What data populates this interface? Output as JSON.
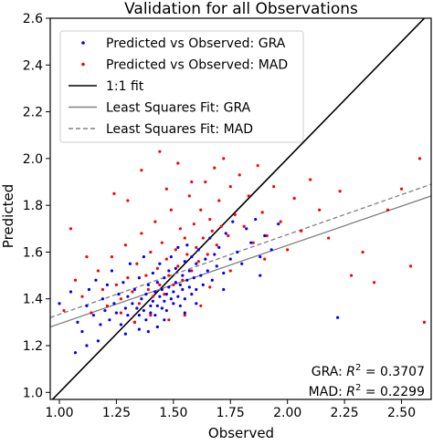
{
  "chart_data": {
    "type": "scatter",
    "title": "Validation for all Observations",
    "xlabel": "Observed",
    "ylabel": "Predicted",
    "xlim": [
      0.96,
      2.63
    ],
    "ylim": [
      0.97,
      2.6
    ],
    "x_ticks": [
      1.0,
      1.25,
      1.5,
      1.75,
      2.0,
      2.25,
      2.5
    ],
    "x_tick_labels": [
      "1.00",
      "1.25",
      "1.50",
      "1.75",
      "2.00",
      "2.25",
      "2.50"
    ],
    "y_ticks": [
      1.0,
      1.2,
      1.4,
      1.6,
      1.8,
      2.0,
      2.2,
      2.4,
      2.6
    ],
    "y_tick_labels": [
      "1.0",
      "1.2",
      "1.4",
      "1.6",
      "1.8",
      "2.0",
      "2.2",
      "2.4",
      "2.6"
    ],
    "grid": false,
    "legend_position": "top-left",
    "series": [
      {
        "name": "Predicted vs Observed: GRA",
        "kind": "points",
        "color": "#0000ff",
        "points": [
          [
            1.0,
            1.38
          ],
          [
            1.05,
            1.43
          ],
          [
            1.08,
            1.3
          ],
          [
            1.1,
            1.26
          ],
          [
            1.12,
            1.37
          ],
          [
            1.13,
            1.44
          ],
          [
            1.15,
            1.33
          ],
          [
            1.16,
            1.48
          ],
          [
            1.18,
            1.29
          ],
          [
            1.19,
            1.4
          ],
          [
            1.2,
            1.35
          ],
          [
            1.21,
            1.46
          ],
          [
            1.22,
            1.31
          ],
          [
            1.23,
            1.52
          ],
          [
            1.24,
            1.38
          ],
          [
            1.25,
            1.34
          ],
          [
            1.26,
            1.42
          ],
          [
            1.27,
            1.29
          ],
          [
            1.28,
            1.47
          ],
          [
            1.29,
            1.36
          ],
          [
            1.3,
            1.33
          ],
          [
            1.3,
            1.41
          ],
          [
            1.31,
            1.55
          ],
          [
            1.32,
            1.38
          ],
          [
            1.33,
            1.3
          ],
          [
            1.33,
            1.44
          ],
          [
            1.34,
            1.36
          ],
          [
            1.35,
            1.49
          ],
          [
            1.35,
            1.33
          ],
          [
            1.36,
            1.4
          ],
          [
            1.37,
            1.35
          ],
          [
            1.37,
            1.58
          ],
          [
            1.38,
            1.42
          ],
          [
            1.38,
            1.31
          ],
          [
            1.39,
            1.46
          ],
          [
            1.4,
            1.37
          ],
          [
            1.4,
            1.34
          ],
          [
            1.41,
            1.51
          ],
          [
            1.41,
            1.39
          ],
          [
            1.42,
            1.43
          ],
          [
            1.42,
            1.33
          ],
          [
            1.43,
            1.47
          ],
          [
            1.43,
            1.37
          ],
          [
            1.44,
            1.41
          ],
          [
            1.44,
            1.55
          ],
          [
            1.45,
            1.36
          ],
          [
            1.45,
            1.44
          ],
          [
            1.46,
            1.49
          ],
          [
            1.46,
            1.39
          ],
          [
            1.47,
            1.42
          ],
          [
            1.47,
            1.35
          ],
          [
            1.48,
            1.52
          ],
          [
            1.48,
            1.45
          ],
          [
            1.49,
            1.4
          ],
          [
            1.49,
            1.58
          ],
          [
            1.5,
            1.43
          ],
          [
            1.5,
            1.38
          ],
          [
            1.51,
            1.47
          ],
          [
            1.51,
            1.53
          ],
          [
            1.52,
            1.41
          ],
          [
            1.52,
            1.62
          ],
          [
            1.53,
            1.46
          ],
          [
            1.53,
            1.37
          ],
          [
            1.54,
            1.5
          ],
          [
            1.54,
            1.44
          ],
          [
            1.55,
            1.56
          ],
          [
            1.55,
            1.4
          ],
          [
            1.56,
            1.48
          ],
          [
            1.56,
            1.63
          ],
          [
            1.57,
            1.45
          ],
          [
            1.57,
            1.52
          ],
          [
            1.58,
            1.42
          ],
          [
            1.58,
            1.58
          ],
          [
            1.59,
            1.49
          ],
          [
            1.6,
            1.55
          ],
          [
            1.6,
            1.44
          ],
          [
            1.61,
            1.61
          ],
          [
            1.62,
            1.5
          ],
          [
            1.63,
            1.46
          ],
          [
            1.64,
            1.57
          ],
          [
            1.65,
            1.52
          ],
          [
            1.66,
            1.66
          ],
          [
            1.67,
            1.48
          ],
          [
            1.68,
            1.59
          ],
          [
            1.69,
            1.54
          ],
          [
            1.7,
            1.62
          ],
          [
            1.72,
            1.51
          ],
          [
            1.73,
            1.68
          ],
          [
            1.75,
            1.57
          ],
          [
            1.76,
            1.73
          ],
          [
            1.78,
            1.6
          ],
          [
            1.8,
            1.55
          ],
          [
            1.82,
            1.7
          ],
          [
            1.84,
            1.64
          ],
          [
            1.86,
            1.74
          ],
          [
            1.88,
            1.58
          ],
          [
            1.9,
            1.67
          ],
          [
            1.93,
            1.61
          ],
          [
            1.96,
            1.72
          ],
          [
            1.43,
            1.28
          ],
          [
            1.46,
            1.31
          ],
          [
            1.39,
            1.26
          ],
          [
            1.55,
            1.34
          ],
          [
            1.6,
            1.38
          ],
          [
            1.35,
            1.27
          ],
          [
            1.29,
            1.25
          ],
          [
            1.17,
            1.22
          ],
          [
            1.12,
            1.2
          ],
          [
            1.07,
            1.17
          ],
          [
            2.22,
            1.32
          ],
          [
            1.88,
            1.5
          ],
          [
            1.72,
            1.44
          ]
        ]
      },
      {
        "name": "Predicted vs Observed: MAD",
        "kind": "points",
        "color": "#ff0000",
        "points": [
          [
            1.02,
            1.35
          ],
          [
            1.07,
            1.48
          ],
          [
            1.1,
            1.41
          ],
          [
            1.14,
            1.34
          ],
          [
            1.17,
            1.52
          ],
          [
            1.19,
            1.44
          ],
          [
            1.21,
            1.37
          ],
          [
            1.23,
            1.58
          ],
          [
            1.25,
            1.46
          ],
          [
            1.27,
            1.4
          ],
          [
            1.29,
            1.63
          ],
          [
            1.3,
            1.49
          ],
          [
            1.32,
            1.43
          ],
          [
            1.34,
            1.55
          ],
          [
            1.35,
            1.38
          ],
          [
            1.36,
            1.68
          ],
          [
            1.38,
            1.5
          ],
          [
            1.39,
            1.44
          ],
          [
            1.4,
            1.6
          ],
          [
            1.41,
            1.41
          ],
          [
            1.42,
            1.73
          ],
          [
            1.43,
            1.53
          ],
          [
            1.44,
            1.46
          ],
          [
            1.45,
            1.64
          ],
          [
            1.46,
            1.42
          ],
          [
            1.47,
            1.57
          ],
          [
            1.48,
            1.5
          ],
          [
            1.49,
            1.78
          ],
          [
            1.5,
            1.46
          ],
          [
            1.51,
            1.61
          ],
          [
            1.52,
            1.54
          ],
          [
            1.53,
            1.7
          ],
          [
            1.54,
            1.48
          ],
          [
            1.55,
            1.66
          ],
          [
            1.56,
            1.59
          ],
          [
            1.57,
            1.84
          ],
          [
            1.58,
            1.52
          ],
          [
            1.59,
            1.72
          ],
          [
            1.6,
            1.62
          ],
          [
            1.61,
            1.56
          ],
          [
            1.62,
            1.78
          ],
          [
            1.63,
            1.66
          ],
          [
            1.64,
            1.9
          ],
          [
            1.65,
            1.59
          ],
          [
            1.66,
            1.74
          ],
          [
            1.67,
            1.69
          ],
          [
            1.68,
            1.96
          ],
          [
            1.69,
            1.63
          ],
          [
            1.7,
            1.82
          ],
          [
            1.71,
            1.71
          ],
          [
            1.72,
            2.0
          ],
          [
            1.74,
            1.67
          ],
          [
            1.75,
            1.88
          ],
          [
            1.77,
            1.76
          ],
          [
            1.79,
            1.93
          ],
          [
            1.81,
            1.71
          ],
          [
            1.83,
            1.84
          ],
          [
            1.85,
            1.64
          ],
          [
            1.87,
            1.97
          ],
          [
            1.89,
            1.77
          ],
          [
            1.91,
            1.67
          ],
          [
            1.94,
            1.88
          ],
          [
            1.97,
            1.73
          ],
          [
            2.0,
            1.61
          ],
          [
            2.03,
            1.83
          ],
          [
            2.06,
            1.69
          ],
          [
            2.1,
            1.91
          ],
          [
            2.14,
            1.78
          ],
          [
            2.18,
            1.66
          ],
          [
            2.23,
            1.86
          ],
          [
            2.28,
            1.5
          ],
          [
            2.33,
            1.6
          ],
          [
            2.38,
            1.47
          ],
          [
            2.44,
            1.78
          ],
          [
            2.5,
            1.87
          ],
          [
            2.54,
            1.54
          ],
          [
            2.58,
            2.0
          ],
          [
            2.6,
            1.3
          ],
          [
            1.44,
            2.03
          ],
          [
            1.36,
            1.95
          ],
          [
            1.52,
            1.98
          ],
          [
            1.24,
            1.85
          ],
          [
            1.3,
            1.82
          ],
          [
            1.47,
            1.87
          ],
          [
            1.05,
            1.7
          ],
          [
            1.12,
            1.58
          ],
          [
            1.58,
            1.9
          ],
          [
            1.4,
            1.33
          ],
          [
            1.33,
            1.3
          ],
          [
            1.27,
            1.34
          ],
          [
            1.62,
            1.37
          ],
          [
            1.55,
            1.33
          ],
          [
            1.48,
            1.31
          ],
          [
            1.66,
            1.45
          ],
          [
            1.75,
            1.52
          ],
          [
            1.9,
            1.57
          ]
        ]
      },
      {
        "name": "1:1 fit",
        "kind": "line",
        "color": "#000000",
        "dash": "solid",
        "x": [
          0.96,
          2.63
        ],
        "y": [
          0.96,
          2.63
        ]
      },
      {
        "name": "Least Squares Fit: GRA",
        "kind": "line",
        "color": "#808080",
        "dash": "solid",
        "x": [
          0.96,
          2.63
        ],
        "y": [
          1.28,
          1.84
        ]
      },
      {
        "name": "Least Squares Fit: MAD",
        "kind": "line",
        "color": "#808080",
        "dash": "dashed",
        "x": [
          0.96,
          2.63
        ],
        "y": [
          1.32,
          1.89
        ]
      }
    ],
    "annotations": [
      {
        "prefix": "GRA: ",
        "var": "R",
        "sup": "2",
        "suffix": " = 0.3707"
      },
      {
        "prefix": "MAD: ",
        "var": "R",
        "sup": "2",
        "suffix": " = 0.2299"
      }
    ]
  }
}
